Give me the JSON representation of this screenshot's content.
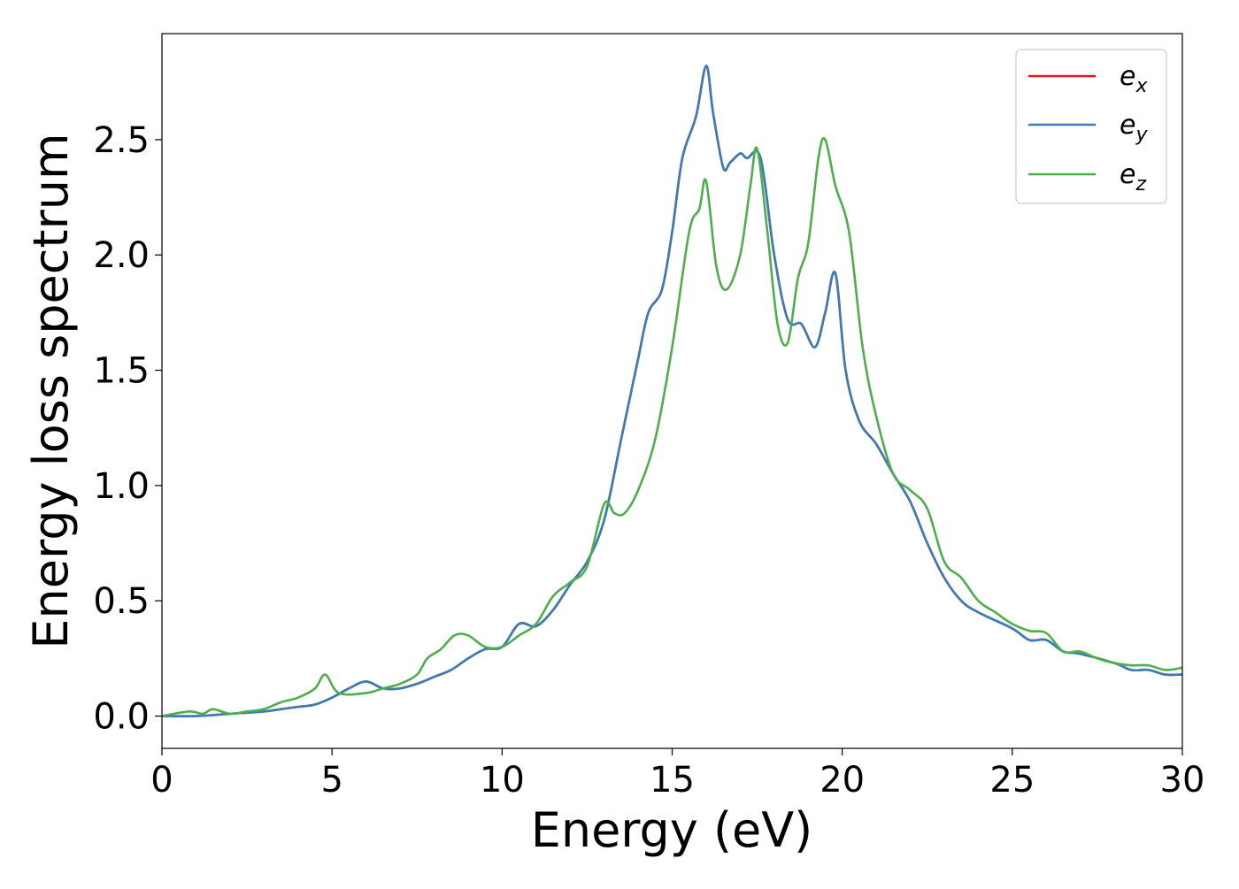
{
  "chart_data": {
    "type": "line",
    "title": "",
    "xlabel": "Energy (eV)",
    "ylabel": "Energy loss spectrum",
    "xlim": [
      0,
      30
    ],
    "ylim": [
      -0.14,
      2.96
    ],
    "xticks": [
      0,
      5,
      10,
      15,
      20,
      25,
      30
    ],
    "xtick_labels": [
      "0",
      "5",
      "10",
      "15",
      "20",
      "25",
      "30"
    ],
    "yticks": [
      0.0,
      0.5,
      1.0,
      1.5,
      2.0,
      2.5
    ],
    "ytick_labels": [
      "0.0",
      "0.5",
      "1.0",
      "1.5",
      "2.0",
      "2.5"
    ],
    "grid": false,
    "legend_position": "top-right",
    "series": [
      {
        "name": "e_x",
        "label_main": "e",
        "label_sub": "x",
        "color": "#e41a1c",
        "x": [
          0,
          1,
          2,
          3,
          3.5,
          4,
          4.5,
          5,
          5.5,
          6,
          6.5,
          7,
          7.5,
          8,
          8.5,
          9,
          9.5,
          10,
          10.5,
          11,
          11.5,
          12,
          12.5,
          13,
          13.5,
          14,
          14.3,
          14.7,
          15,
          15.3,
          15.7,
          16,
          16.2,
          16.5,
          16.7,
          17,
          17.2,
          17.6,
          18,
          18.4,
          18.8,
          19.2,
          19.5,
          19.8,
          20.1,
          20.5,
          21,
          21.5,
          22,
          22.5,
          23,
          23.5,
          24,
          25,
          25.5,
          26,
          26.5,
          27,
          28,
          28.5,
          29,
          29.5,
          30
        ],
        "y": [
          0.0,
          0.0,
          0.01,
          0.02,
          0.03,
          0.04,
          0.05,
          0.08,
          0.12,
          0.15,
          0.12,
          0.12,
          0.14,
          0.17,
          0.2,
          0.25,
          0.29,
          0.3,
          0.4,
          0.39,
          0.46,
          0.57,
          0.67,
          0.85,
          1.2,
          1.55,
          1.75,
          1.85,
          2.1,
          2.42,
          2.6,
          2.82,
          2.62,
          2.38,
          2.4,
          2.44,
          2.42,
          2.42,
          2.0,
          1.72,
          1.7,
          1.6,
          1.75,
          1.92,
          1.5,
          1.28,
          1.18,
          1.05,
          0.93,
          0.75,
          0.6,
          0.5,
          0.45,
          0.38,
          0.33,
          0.33,
          0.28,
          0.27,
          0.23,
          0.2,
          0.2,
          0.18,
          0.18
        ]
      },
      {
        "name": "e_y",
        "label_main": "e",
        "label_sub": "y",
        "color": "#377eb8",
        "x": [
          0,
          1,
          2,
          3,
          3.5,
          4,
          4.5,
          5,
          5.5,
          6,
          6.5,
          7,
          7.5,
          8,
          8.5,
          9,
          9.5,
          10,
          10.5,
          11,
          11.5,
          12,
          12.5,
          13,
          13.5,
          14,
          14.3,
          14.7,
          15,
          15.3,
          15.7,
          16,
          16.2,
          16.5,
          16.7,
          17,
          17.2,
          17.6,
          18,
          18.4,
          18.8,
          19.2,
          19.5,
          19.8,
          20.1,
          20.5,
          21,
          21.5,
          22,
          22.5,
          23,
          23.5,
          24,
          25,
          25.5,
          26,
          26.5,
          27,
          28,
          28.5,
          29,
          29.5,
          30
        ],
        "y": [
          0.0,
          0.0,
          0.01,
          0.02,
          0.03,
          0.04,
          0.05,
          0.08,
          0.12,
          0.15,
          0.12,
          0.12,
          0.14,
          0.17,
          0.2,
          0.25,
          0.29,
          0.3,
          0.4,
          0.39,
          0.46,
          0.57,
          0.67,
          0.85,
          1.2,
          1.55,
          1.75,
          1.85,
          2.1,
          2.42,
          2.6,
          2.82,
          2.62,
          2.38,
          2.4,
          2.44,
          2.42,
          2.42,
          2.0,
          1.72,
          1.7,
          1.6,
          1.75,
          1.92,
          1.5,
          1.28,
          1.18,
          1.05,
          0.93,
          0.75,
          0.6,
          0.5,
          0.45,
          0.38,
          0.33,
          0.33,
          0.28,
          0.27,
          0.23,
          0.2,
          0.2,
          0.18,
          0.18
        ]
      },
      {
        "name": "e_z",
        "label_main": "e",
        "label_sub": "z",
        "color": "#4daf4a",
        "x": [
          0,
          0.8,
          1.2,
          1.5,
          2,
          2.5,
          3,
          3.5,
          4,
          4.5,
          4.8,
          5.2,
          6,
          6.5,
          7,
          7.5,
          7.8,
          8.2,
          8.6,
          9,
          9.5,
          10,
          10.5,
          11,
          11.5,
          12,
          12.5,
          13,
          13.3,
          13.6,
          14,
          14.5,
          15,
          15.5,
          15.8,
          16,
          16.3,
          16.6,
          17,
          17.3,
          17.5,
          17.8,
          18.1,
          18.4,
          18.7,
          19,
          19.3,
          19.5,
          19.8,
          20.2,
          20.6,
          21,
          21.5,
          22,
          22.5,
          23,
          23.5,
          24,
          24.5,
          25,
          25.5,
          26,
          26.5,
          27,
          27.5,
          28,
          28.5,
          29,
          29.5,
          30
        ],
        "y": [
          0.0,
          0.02,
          0.01,
          0.03,
          0.01,
          0.02,
          0.03,
          0.06,
          0.08,
          0.12,
          0.18,
          0.1,
          0.1,
          0.12,
          0.14,
          0.18,
          0.25,
          0.29,
          0.35,
          0.35,
          0.3,
          0.3,
          0.35,
          0.4,
          0.52,
          0.58,
          0.65,
          0.92,
          0.88,
          0.88,
          0.98,
          1.2,
          1.6,
          2.1,
          2.2,
          2.32,
          1.95,
          1.85,
          2.0,
          2.3,
          2.46,
          2.1,
          1.7,
          1.62,
          1.9,
          2.05,
          2.42,
          2.5,
          2.3,
          2.1,
          1.6,
          1.3,
          1.05,
          0.98,
          0.9,
          0.67,
          0.6,
          0.5,
          0.45,
          0.4,
          0.37,
          0.36,
          0.28,
          0.28,
          0.25,
          0.23,
          0.22,
          0.22,
          0.2,
          0.21
        ]
      }
    ]
  }
}
